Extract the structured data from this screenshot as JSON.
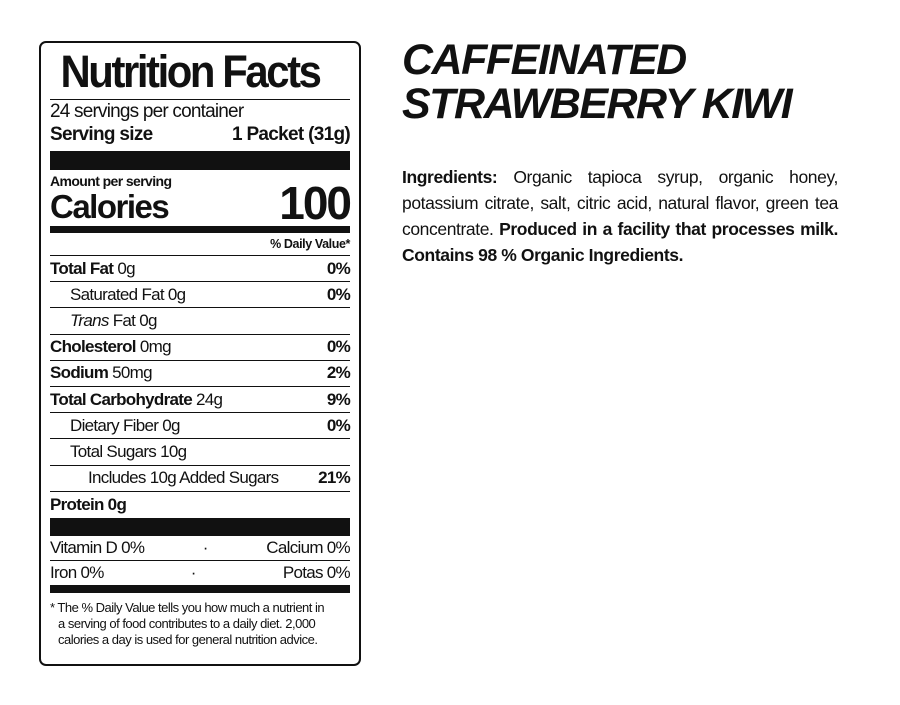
{
  "label": {
    "title": "Nutrition Facts",
    "servings": "24 servings per container",
    "serving_size_label": "Serving size",
    "serving_size_value": "1 Packet (31g)",
    "amount_per_serving": "Amount per serving",
    "calories_label": "Calories",
    "calories_value": "100",
    "dv_header": "% Daily Value*",
    "nutrients": [
      {
        "name": "Total Fat",
        "amount": "0g",
        "dv": "0%"
      },
      {
        "name": "Saturated Fat 0g",
        "amount": "",
        "dv": "0%"
      },
      {
        "name": "Trans",
        "amount": "Fat 0g",
        "dv": ""
      },
      {
        "name": "Cholesterol",
        "amount": "0mg",
        "dv": "0%"
      },
      {
        "name": "Sodium",
        "amount": "50mg",
        "dv": "2%"
      },
      {
        "name": "Total Carbohydrate",
        "amount": "24g",
        "dv": "9%"
      },
      {
        "name": "Dietary Fiber 0g",
        "amount": "",
        "dv": "0%"
      },
      {
        "name": "Total Sugars 10g",
        "amount": "",
        "dv": ""
      },
      {
        "name": "Includes 10g Added Sugars",
        "amount": "",
        "dv": "21%"
      },
      {
        "name": "Protein 0g",
        "amount": "",
        "dv": ""
      }
    ],
    "vitamins": [
      {
        "left": "Vitamin D 0%",
        "sep": "·",
        "right": "Calcium 0%"
      },
      {
        "left": "Iron 0%",
        "sep": "·",
        "right": "Potas 0%"
      }
    ],
    "footnote": [
      "* The % Daily Value tells you how much a nutrient in",
      "a serving of food contributes to a daily diet. 2,000",
      "calories a day is used for general nutrition advice."
    ]
  },
  "product": {
    "title_line1": "Caffeinated",
    "title_line2": "Strawberry Kiwi",
    "ingredients_label": "Ingredients:",
    "ingredients_text": " Organic tapioca syrup, organic honey, potassium citrate, salt, citric acid, natural flavor, green tea concentrate. ",
    "allergen": "Produced in a facility that processes milk.",
    "organic": "Contains 98 % Organic Ingredients."
  }
}
